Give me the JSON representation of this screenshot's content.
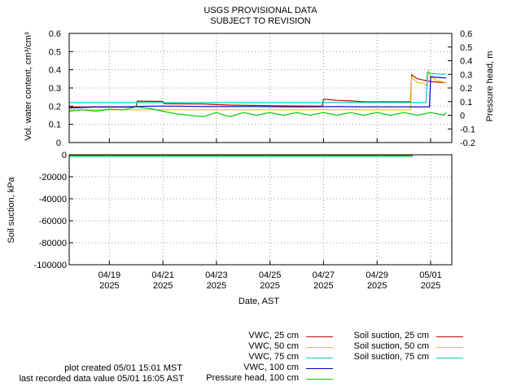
{
  "header": {
    "line1": "USGS PROVISIONAL DATA",
    "line2": "SUBJECT TO REVISION"
  },
  "chart_data": [
    {
      "type": "line",
      "ylabel": "Vol. water content, cm³/cm³",
      "y2label": "Pressure head, m",
      "ylim": [
        0,
        0.6
      ],
      "y2lim": [
        -0.2,
        0.6
      ],
      "y_ticks": [
        "0",
        "0.1",
        "0.2",
        "0.3",
        "0.4",
        "0.5",
        "0.6"
      ],
      "y2_ticks": [
        "-0.2",
        "-0.1",
        "0",
        "0.1",
        "0.2",
        "0.3",
        "0.4",
        "0.5",
        "0.6"
      ],
      "grid": true,
      "series": [
        {
          "name": "VWC, 25 cm",
          "axis": "left",
          "color": "#cc0000",
          "points": [
            [
              "2025-04-17T12:00",
              0.195
            ],
            [
              "2025-04-18T12:00",
              0.195
            ],
            [
              "2025-04-19T12:00",
              0.195
            ],
            [
              "2025-04-20T00:00",
              0.196
            ],
            [
              "2025-04-20T01:00",
              0.228
            ],
            [
              "2025-04-21T00:00",
              0.226
            ],
            [
              "2025-04-21T01:00",
              0.213
            ],
            [
              "2025-04-22T12:00",
              0.212
            ],
            [
              "2025-04-23T12:00",
              0.206
            ],
            [
              "2025-04-25T00:00",
              0.203
            ],
            [
              "2025-04-26T00:00",
              0.201
            ],
            [
              "2025-04-26T23:00",
              0.2
            ],
            [
              "2025-04-27T00:00",
              0.238
            ],
            [
              "2025-04-27T12:00",
              0.232
            ],
            [
              "2025-04-28T00:00",
              0.229
            ],
            [
              "2025-04-28T12:00",
              0.225
            ],
            [
              "2025-04-29T12:00",
              0.224
            ],
            [
              "2025-04-30T06:00",
              0.224
            ],
            [
              "2025-04-30T07:00",
              0.372
            ],
            [
              "2025-04-30T12:00",
              0.351
            ],
            [
              "2025-04-30T18:00",
              0.343
            ],
            [
              "2025-05-01T00:00",
              0.336
            ],
            [
              "2025-05-01T06:00",
              0.332
            ],
            [
              "2025-05-01T14:00",
              0.33
            ]
          ]
        },
        {
          "name": "VWC, 50 cm",
          "axis": "left",
          "color": "#e6c800",
          "points": [
            [
              "2025-04-17T12:00",
              0.18
            ],
            [
              "2025-04-19T12:00",
              0.18
            ],
            [
              "2025-04-21T12:00",
              0.18
            ],
            [
              "2025-04-23T12:00",
              0.18
            ],
            [
              "2025-04-25T12:00",
              0.18
            ],
            [
              "2025-04-27T12:00",
              0.18
            ],
            [
              "2025-04-29T12:00",
              0.18
            ],
            [
              "2025-04-30T06:00",
              0.18
            ],
            [
              "2025-04-30T07:00",
              0.36
            ],
            [
              "2025-04-30T12:00",
              0.33
            ],
            [
              "2025-04-30T18:00",
              0.325
            ],
            [
              "2025-04-30T21:00",
              0.31
            ],
            [
              "2025-04-30T22:00",
              0.4
            ],
            [
              "2025-05-01T00:00",
              0.36
            ],
            [
              "2025-05-01T06:00",
              0.34
            ],
            [
              "2025-05-01T14:00",
              0.33
            ]
          ]
        },
        {
          "name": "VWC, 75 cm",
          "axis": "left",
          "color": "#00cccc",
          "points": [
            [
              "2025-04-17T12:00",
              0.22
            ],
            [
              "2025-04-20T12:00",
              0.22
            ],
            [
              "2025-04-23T12:00",
              0.22
            ],
            [
              "2025-04-26T12:00",
              0.22
            ],
            [
              "2025-04-29T12:00",
              0.22
            ],
            [
              "2025-04-30T20:00",
              0.22
            ],
            [
              "2025-04-30T21:00",
              0.385
            ],
            [
              "2025-05-01T00:00",
              0.38
            ],
            [
              "2025-05-01T14:00",
              0.375
            ]
          ]
        },
        {
          "name": "VWC, 100 cm",
          "axis": "left",
          "color": "#0000cc",
          "points": [
            [
              "2025-04-17T12:00",
              0.19
            ],
            [
              "2025-04-18T12:00",
              0.195
            ],
            [
              "2025-04-19T12:00",
              0.195
            ],
            [
              "2025-04-20T12:00",
              0.2
            ],
            [
              "2025-04-21T12:00",
              0.2
            ],
            [
              "2025-04-22T12:00",
              0.198
            ],
            [
              "2025-04-23T12:00",
              0.198
            ],
            [
              "2025-04-24T12:00",
              0.198
            ],
            [
              "2025-04-25T12:00",
              0.196
            ],
            [
              "2025-04-26T12:00",
              0.196
            ],
            [
              "2025-04-27T12:00",
              0.198
            ],
            [
              "2025-04-28T12:00",
              0.196
            ],
            [
              "2025-04-29T12:00",
              0.196
            ],
            [
              "2025-04-30T12:00",
              0.196
            ],
            [
              "2025-04-30T23:00",
              0.196
            ],
            [
              "2025-05-01T00:00",
              0.362
            ],
            [
              "2025-05-01T06:00",
              0.358
            ],
            [
              "2025-05-01T14:00",
              0.355
            ]
          ]
        },
        {
          "name": "Pressure head, 100 cm",
          "axis": "right",
          "color": "#00cc00",
          "points": [
            [
              "2025-04-17T12:00",
              0.03
            ],
            [
              "2025-04-18T00:00",
              0.04
            ],
            [
              "2025-04-18T12:00",
              0.03
            ],
            [
              "2025-04-19T00:00",
              0.045
            ],
            [
              "2025-04-19T12:00",
              0.04
            ],
            [
              "2025-04-20T00:00",
              0.06
            ],
            [
              "2025-04-20T12:00",
              0.05
            ],
            [
              "2025-04-21T00:00",
              0.03
            ],
            [
              "2025-04-21T12:00",
              0.01
            ],
            [
              "2025-04-22T00:00",
              0.0
            ],
            [
              "2025-04-22T12:00",
              -0.01
            ],
            [
              "2025-04-23T00:00",
              0.02
            ],
            [
              "2025-04-23T12:00",
              -0.01
            ],
            [
              "2025-04-24T00:00",
              0.02
            ],
            [
              "2025-04-24T12:00",
              0.0
            ],
            [
              "2025-04-25T00:00",
              0.02
            ],
            [
              "2025-04-25T12:00",
              0.0
            ],
            [
              "2025-04-26T00:00",
              0.02
            ],
            [
              "2025-04-26T12:00",
              0.0
            ],
            [
              "2025-04-27T00:00",
              0.02
            ],
            [
              "2025-04-27T12:00",
              0.0
            ],
            [
              "2025-04-28T00:00",
              0.02
            ],
            [
              "2025-04-28T12:00",
              0.0
            ],
            [
              "2025-04-29T00:00",
              0.02
            ],
            [
              "2025-04-29T12:00",
              0.0
            ],
            [
              "2025-04-30T00:00",
              0.02
            ],
            [
              "2025-04-30T12:00",
              0.0
            ],
            [
              "2025-05-01T00:00",
              0.02
            ],
            [
              "2025-05-01T12:00",
              0.0
            ],
            [
              "2025-05-01T14:00",
              0.02
            ]
          ]
        }
      ]
    },
    {
      "type": "line",
      "ylabel": "Soil suction, kPa",
      "xlabel": "Date, AST",
      "ylim": [
        -100000,
        0
      ],
      "y_ticks": [
        "0",
        "-20000",
        "-40000",
        "-60000",
        "-80000",
        "-100000"
      ],
      "x_ticks": [
        {
          "date": "2025-04-19",
          "line1": "04/19",
          "line2": "2025"
        },
        {
          "date": "2025-04-21",
          "line1": "04/21",
          "line2": "2025"
        },
        {
          "date": "2025-04-23",
          "line1": "04/23",
          "line2": "2025"
        },
        {
          "date": "2025-04-25",
          "line1": "04/25",
          "line2": "2025"
        },
        {
          "date": "2025-04-27",
          "line1": "04/27",
          "line2": "2025"
        },
        {
          "date": "2025-04-29",
          "line1": "04/29",
          "line2": "2025"
        },
        {
          "date": "2025-05-01",
          "line1": "05/01",
          "line2": "2025"
        }
      ],
      "grid": true,
      "series": [
        {
          "name": "Soil suction, 25 cm",
          "color": "#cc0000",
          "points": [
            [
              "2025-04-17T12:00",
              0
            ],
            [
              "2025-04-30T08:00",
              0
            ]
          ]
        },
        {
          "name": "Soil suction, 50 cm",
          "color": "#e6c800",
          "points": [
            [
              "2025-04-17T12:00",
              0
            ],
            [
              "2025-04-30T08:00",
              0
            ]
          ]
        },
        {
          "name": "Soil suction, 75 cm",
          "color": "#00cccc",
          "points": [
            [
              "2025-04-17T12:00",
              0
            ],
            [
              "2025-04-30T08:00",
              0
            ]
          ]
        }
      ]
    }
  ],
  "legend": {
    "left": [
      {
        "label": "VWC, 25 cm",
        "color": "#cc0000"
      },
      {
        "label": "VWC, 50 cm",
        "color": "#e6c800"
      },
      {
        "label": "VWC, 75 cm",
        "color": "#00cccc"
      },
      {
        "label": "VWC, 100 cm",
        "color": "#0000cc"
      },
      {
        "label": "Pressure head, 100 cm",
        "color": "#00cc00"
      }
    ],
    "right": [
      {
        "label": "Soil suction, 25 cm",
        "color": "#cc0000"
      },
      {
        "label": "Soil suction, 50 cm",
        "color": "#e6c800"
      },
      {
        "label": "Soil suction, 75 cm",
        "color": "#00cccc"
      }
    ]
  },
  "footer": {
    "created": "plot created 05/01 15:01 MST",
    "last_recorded": "last recorded data value 05/01 16:05 AST"
  }
}
